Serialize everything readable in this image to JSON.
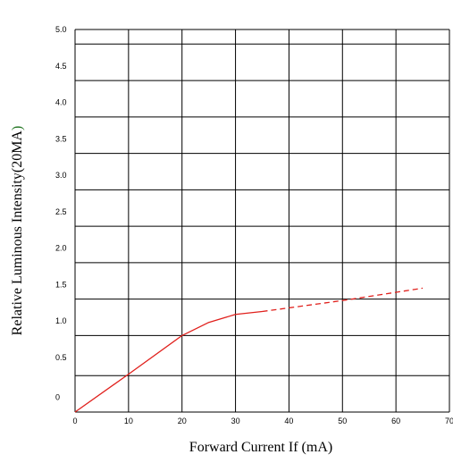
{
  "chart_data": {
    "type": "line",
    "xlabel": "Forward Current If (mA)",
    "ylabel_main": "Relative Luminous Intensity(20MA",
    "ylabel_paren": ")",
    "xlim": [
      0,
      70
    ],
    "ylim": [
      -0.25,
      5.0
    ],
    "x_ticks": [
      0,
      10,
      20,
      30,
      40,
      50,
      60,
      70
    ],
    "x_tick_labels": [
      "0",
      "10",
      "20",
      "30",
      "40",
      "50",
      "60",
      "70"
    ],
    "y_tick_labels": [
      {
        "value": -0.05,
        "label": "0"
      },
      {
        "value": 0.5,
        "label": "0.5"
      },
      {
        "value": 1.0,
        "label": "1.0"
      },
      {
        "value": 1.5,
        "label": "1.5"
      },
      {
        "value": 2.0,
        "label": "2.0"
      },
      {
        "value": 2.5,
        "label": "2.5"
      },
      {
        "value": 3.0,
        "label": "3.0"
      },
      {
        "value": 3.5,
        "label": "3.5"
      },
      {
        "value": 4.0,
        "label": "4.0"
      },
      {
        "value": 4.5,
        "label": "4.5"
      },
      {
        "value": 5.0,
        "label": "5.0"
      }
    ],
    "grid": true,
    "series": [
      {
        "style": "solid",
        "color": "#e0201c",
        "x": [
          0,
          10,
          20,
          25,
          30,
          35
        ],
        "y": [
          -0.25,
          0.27,
          0.8,
          0.98,
          1.09,
          1.13
        ]
      },
      {
        "style": "dashed",
        "color": "#e0201c",
        "x": [
          35,
          50,
          65
        ],
        "y": [
          1.13,
          1.28,
          1.45
        ]
      }
    ]
  }
}
